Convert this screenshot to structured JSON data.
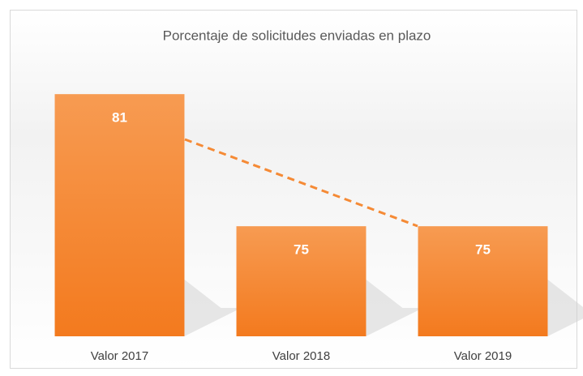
{
  "chart_data": {
    "type": "bar",
    "title": "Porcentaje de solicitudes enviadas en plazo",
    "categories": [
      "Valor 2017",
      "Valor 2018",
      "Valor 2019"
    ],
    "values": [
      81,
      75,
      75
    ],
    "color": "#f58a35",
    "ylim": [
      70,
      82
    ],
    "grid": false
  }
}
